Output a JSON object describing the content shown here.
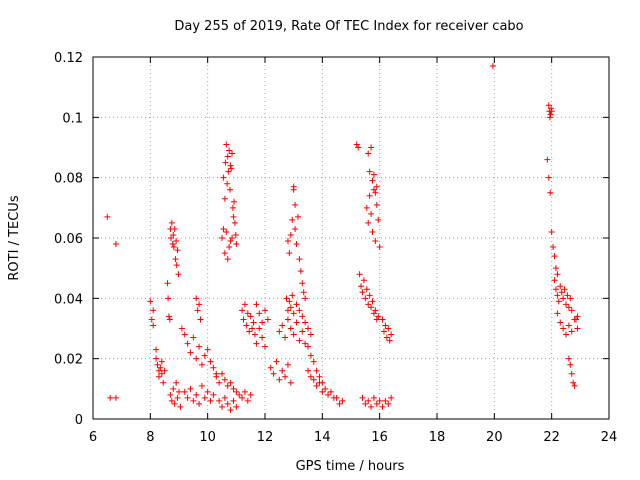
{
  "chart_data": {
    "type": "scatter",
    "title": "Day 255 of 2019, Rate Of TEC Index for receiver cabo",
    "xlabel": "GPS time / hours",
    "ylabel": "ROTI / TECUs",
    "xlim": [
      6,
      24
    ],
    "ylim": [
      0,
      0.12
    ],
    "x_ticks": [
      "6",
      "8",
      "10",
      "12",
      "14",
      "16",
      "18",
      "20",
      "22",
      "24"
    ],
    "y_ticks": [
      "0",
      "0.02",
      "0.04",
      "0.06",
      "0.08",
      "0.1",
      "0.12"
    ],
    "grid": true,
    "marker": "+",
    "series": [
      {
        "name": "ROTI",
        "color": "#ff0000",
        "x": [
          6.5,
          6.6,
          6.8,
          6.8,
          8.0,
          8.05,
          8.1,
          8.1,
          8.2,
          8.2,
          8.25,
          8.3,
          8.3,
          8.35,
          8.4,
          8.4,
          8.45,
          8.5,
          8.6,
          8.62,
          8.65,
          8.68,
          8.7,
          8.72,
          8.75,
          8.78,
          8.8,
          8.82,
          8.85,
          8.88,
          8.9,
          8.92,
          8.95,
          8.98,
          8.7,
          8.75,
          8.8,
          8.85,
          8.9,
          8.95,
          9.0,
          9.05,
          9.1,
          9.2,
          9.3,
          9.4,
          9.5,
          9.6,
          9.7,
          9.8,
          9.9,
          10.0,
          10.1,
          10.2,
          10.3,
          9.2,
          9.3,
          9.4,
          9.5,
          9.6,
          9.7,
          9.8,
          9.9,
          10.0,
          10.1,
          10.2,
          9.6,
          9.65,
          9.7,
          9.75,
          10.3,
          10.4,
          10.5,
          10.6,
          10.7,
          10.8,
          10.9,
          11.0,
          11.1,
          11.2,
          11.3,
          11.4,
          11.5,
          10.4,
          10.5,
          10.6,
          10.7,
          10.8,
          10.9,
          11.0,
          10.55,
          10.6,
          10.62,
          10.65,
          10.68,
          10.7,
          10.72,
          10.75,
          10.78,
          10.8,
          10.82,
          10.85,
          10.88,
          10.9,
          10.92,
          10.95,
          10.98,
          11.0,
          10.5,
          10.55,
          10.6,
          10.65,
          10.7,
          10.75,
          10.8,
          10.85,
          11.2,
          11.25,
          11.3,
          11.35,
          11.4,
          11.45,
          11.5,
          11.55,
          11.6,
          11.65,
          11.7,
          11.8,
          11.9,
          12.0,
          12.1,
          11.7,
          11.8,
          11.9,
          12.0,
          12.2,
          12.3,
          12.4,
          12.5,
          12.6,
          12.7,
          12.8,
          12.9,
          12.5,
          12.6,
          12.7,
          12.8,
          12.9,
          13.0,
          13.1,
          13.2,
          13.3,
          13.4,
          13.5,
          13.6,
          13.7,
          13.8,
          13.9,
          14.0,
          12.8,
          12.85,
          12.9,
          12.95,
          13.0,
          13.05,
          13.1,
          13.15,
          13.2,
          13.25,
          13.3,
          13.35,
          13.4,
          12.75,
          12.8,
          12.85,
          12.9,
          12.95,
          13.0,
          13.1,
          13.2,
          13.3,
          13.4,
          13.5,
          13.6,
          13.0,
          13.05,
          13.5,
          13.6,
          13.7,
          13.8,
          13.9,
          14.0,
          14.1,
          14.2,
          14.3,
          14.4,
          14.5,
          14.6,
          14.7,
          15.2,
          15.25,
          15.3,
          15.35,
          15.4,
          15.45,
          15.5,
          15.55,
          15.6,
          15.65,
          15.7,
          15.75,
          15.8,
          15.85,
          15.9,
          15.95,
          15.55,
          15.6,
          15.65,
          15.7,
          15.75,
          15.8,
          15.85,
          15.9,
          15.95,
          16.0,
          15.6,
          15.65,
          15.7,
          15.75,
          15.8,
          15.85,
          15.9,
          15.4,
          15.5,
          15.6,
          15.7,
          15.8,
          15.9,
          16.0,
          16.1,
          16.2,
          16.3,
          16.4,
          16.1,
          16.15,
          16.2,
          16.25,
          16.3,
          16.35,
          16.4,
          19.95,
          21.9,
          21.92,
          21.94,
          21.96,
          21.98,
          22.0,
          21.85,
          21.9,
          21.95,
          22.0,
          22.05,
          22.1,
          22.15,
          22.2,
          22.1,
          22.15,
          22.2,
          22.25,
          22.3,
          22.35,
          22.4,
          22.45,
          22.5,
          22.55,
          22.6,
          22.65,
          22.7,
          22.2,
          22.3,
          22.4,
          22.5,
          22.6,
          22.7,
          22.8,
          22.9,
          22.6,
          22.65,
          22.7,
          22.75,
          22.8,
          22.85,
          22.9
        ],
        "y": [
          0.067,
          0.007,
          0.058,
          0.007,
          0.039,
          0.033,
          0.036,
          0.031,
          0.023,
          0.02,
          0.018,
          0.016,
          0.014,
          0.017,
          0.015,
          0.019,
          0.012,
          0.016,
          0.045,
          0.04,
          0.034,
          0.033,
          0.063,
          0.06,
          0.065,
          0.058,
          0.061,
          0.057,
          0.063,
          0.053,
          0.059,
          0.051,
          0.056,
          0.048,
          0.008,
          0.006,
          0.01,
          0.005,
          0.012,
          0.007,
          0.009,
          0.004,
          0.03,
          0.028,
          0.025,
          0.022,
          0.027,
          0.02,
          0.024,
          0.018,
          0.021,
          0.023,
          0.019,
          0.017,
          0.015,
          0.009,
          0.007,
          0.01,
          0.006,
          0.008,
          0.005,
          0.011,
          0.007,
          0.009,
          0.006,
          0.008,
          0.04,
          0.036,
          0.038,
          0.033,
          0.014,
          0.012,
          0.015,
          0.013,
          0.011,
          0.012,
          0.01,
          0.009,
          0.008,
          0.007,
          0.009,
          0.006,
          0.008,
          0.006,
          0.004,
          0.007,
          0.005,
          0.003,
          0.006,
          0.004,
          0.08,
          0.073,
          0.085,
          0.091,
          0.078,
          0.087,
          0.082,
          0.089,
          0.076,
          0.084,
          0.083,
          0.088,
          0.07,
          0.067,
          0.072,
          0.065,
          0.061,
          0.058,
          0.06,
          0.063,
          0.055,
          0.062,
          0.053,
          0.057,
          0.059,
          0.06,
          0.036,
          0.033,
          0.038,
          0.031,
          0.035,
          0.029,
          0.034,
          0.03,
          0.032,
          0.028,
          0.025,
          0.03,
          0.027,
          0.024,
          0.033,
          0.038,
          0.035,
          0.032,
          0.036,
          0.017,
          0.015,
          0.019,
          0.013,
          0.016,
          0.014,
          0.018,
          0.012,
          0.029,
          0.031,
          0.027,
          0.033,
          0.03,
          0.028,
          0.032,
          0.026,
          0.029,
          0.025,
          0.024,
          0.021,
          0.019,
          0.016,
          0.014,
          0.012,
          0.059,
          0.055,
          0.061,
          0.066,
          0.077,
          0.063,
          0.058,
          0.067,
          0.053,
          0.049,
          0.045,
          0.042,
          0.04,
          0.04,
          0.036,
          0.039,
          0.037,
          0.041,
          0.035,
          0.038,
          0.036,
          0.034,
          0.032,
          0.03,
          0.028,
          0.076,
          0.071,
          0.016,
          0.014,
          0.013,
          0.011,
          0.012,
          0.009,
          0.01,
          0.008,
          0.009,
          0.007,
          0.007,
          0.005,
          0.006,
          0.091,
          0.09,
          0.048,
          0.044,
          0.042,
          0.046,
          0.04,
          0.043,
          0.038,
          0.041,
          0.037,
          0.039,
          0.035,
          0.036,
          0.033,
          0.034,
          0.07,
          0.065,
          0.074,
          0.068,
          0.062,
          0.076,
          0.059,
          0.071,
          0.066,
          0.057,
          0.088,
          0.082,
          0.09,
          0.079,
          0.081,
          0.075,
          0.077,
          0.007,
          0.005,
          0.006,
          0.004,
          0.007,
          0.005,
          0.006,
          0.004,
          0.006,
          0.005,
          0.007,
          0.033,
          0.029,
          0.031,
          0.027,
          0.03,
          0.026,
          0.028,
          0.117,
          0.104,
          0.102,
          0.1,
          0.101,
          0.103,
          0.102,
          0.086,
          0.08,
          0.075,
          0.062,
          0.057,
          0.054,
          0.05,
          0.048,
          0.046,
          0.043,
          0.041,
          0.039,
          0.044,
          0.042,
          0.04,
          0.043,
          0.038,
          0.041,
          0.037,
          0.04,
          0.036,
          0.035,
          0.032,
          0.03,
          0.028,
          0.031,
          0.029,
          0.033,
          0.03,
          0.02,
          0.018,
          0.015,
          0.012,
          0.011,
          0.033,
          0.034
        ]
      }
    ]
  }
}
